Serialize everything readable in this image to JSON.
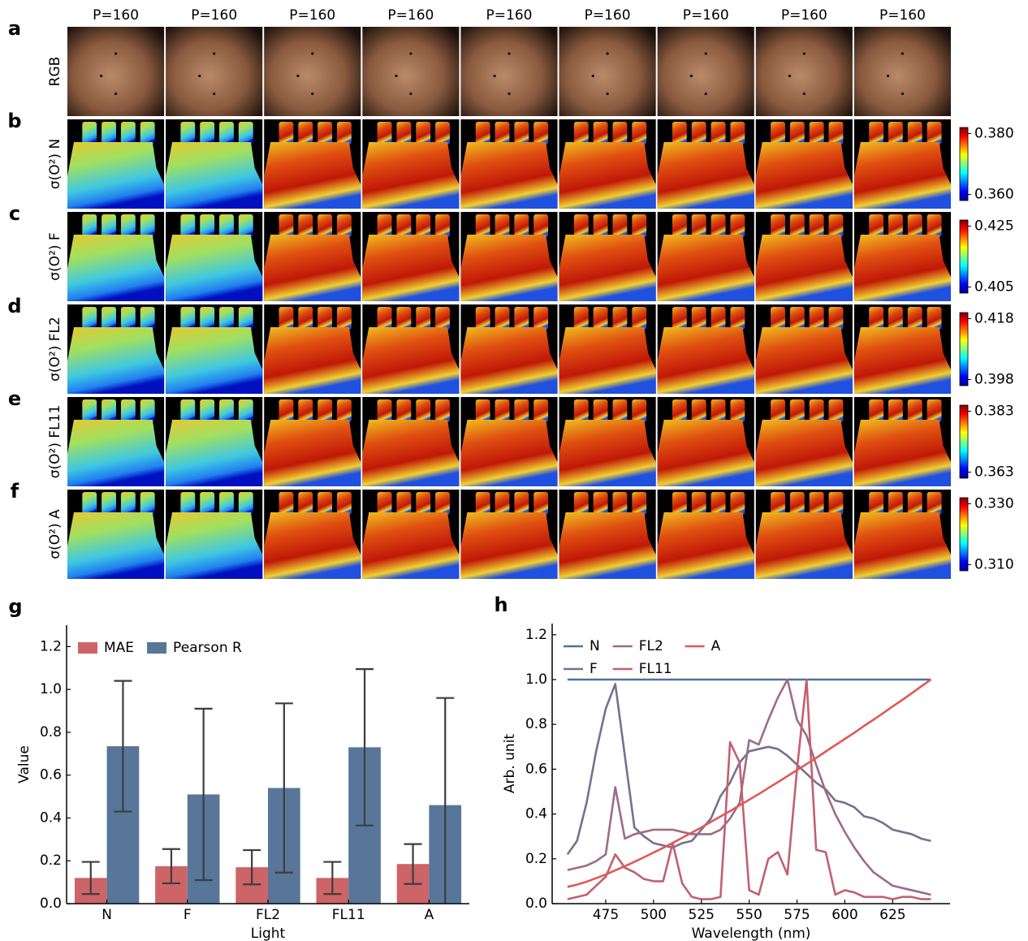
{
  "image_grid": {
    "column_labels": [
      "P=160",
      "P=160",
      "P=160",
      "P=160",
      "P=160",
      "P=160",
      "P=160",
      "P=160",
      "P=160"
    ],
    "rows": [
      {
        "panel": "a",
        "label": "RGB"
      },
      {
        "panel": "b",
        "label": "σ(O²) N",
        "colorbar_lim": [
          0.358,
          0.382
        ],
        "colorbar_ticks": [
          {
            "value": 0.36,
            "label": "0.360"
          },
          {
            "value": 0.38,
            "label": "0.380"
          }
        ]
      },
      {
        "panel": "c",
        "label": "σ(O²) F",
        "colorbar_lim": [
          0.403,
          0.427
        ],
        "colorbar_ticks": [
          0.405,
          0.425
        ]
      },
      {
        "panel": "d",
        "label": "σ(O²) FL2",
        "colorbar_lim": [
          0.396,
          0.42
        ],
        "colorbar_ticks": [
          0.398,
          0.418
        ]
      },
      {
        "panel": "e",
        "label": "σ(O²) FL11",
        "colorbar_lim": [
          0.361,
          0.385
        ],
        "colorbar_ticks": [
          0.363,
          0.383
        ]
      },
      {
        "panel": "f",
        "label": "σ(O²) A",
        "colorbar_lim": [
          0.308,
          0.332
        ],
        "colorbar_ticks": [
          {
            "value": 0.31,
            "label": "0.310"
          },
          {
            "value": 0.33,
            "label": "0.330"
          }
        ]
      }
    ]
  },
  "chart_data": [
    {
      "type": "bar",
      "panel_label": "g",
      "xlabel": "Light",
      "ylabel": "Value",
      "categories": [
        "N",
        "F",
        "FL2",
        "FL11",
        "A"
      ],
      "series": [
        {
          "name": "MAE",
          "color": "#cd6467",
          "values": [
            0.12,
            0.175,
            0.17,
            0.12,
            0.185
          ],
          "errors": [
            0.075,
            0.08,
            0.08,
            0.075,
            0.093
          ]
        },
        {
          "name": "Pearson R",
          "color": "#58769a",
          "values": [
            0.735,
            0.51,
            0.54,
            0.73,
            0.46
          ],
          "errors": [
            0.305,
            0.4,
            0.395,
            0.365,
            0.5
          ]
        }
      ],
      "ylim": [
        0,
        1.3
      ],
      "yticks": [
        {
          "value": 0,
          "label": "0.0"
        },
        0.2,
        0.4,
        0.6,
        0.8,
        {
          "value": 1,
          "label": "1.0"
        },
        1.2
      ],
      "legend": "upper left",
      "legend_columns": 2
    },
    {
      "type": "line",
      "panel_label": "h",
      "xlabel": "Wavelength (nm)",
      "ylabel": "Arb. unit",
      "x": [
        455,
        460,
        465,
        470,
        475,
        480,
        485,
        490,
        495,
        500,
        505,
        510,
        515,
        520,
        525,
        530,
        535,
        540,
        545,
        550,
        555,
        560,
        565,
        570,
        575,
        580,
        585,
        590,
        595,
        600,
        605,
        610,
        615,
        620,
        625,
        630,
        635,
        640,
        645
      ],
      "series": [
        {
          "name": "N",
          "color": "#4c72a0",
          "values": [
            1,
            1,
            1,
            1,
            1,
            1,
            1,
            1,
            1,
            1,
            1,
            1,
            1,
            1,
            1,
            1,
            1,
            1,
            1,
            1,
            1,
            1,
            1,
            1,
            1,
            1,
            1,
            1,
            1,
            1,
            1,
            1,
            1,
            1,
            1,
            1,
            1,
            1,
            1
          ]
        },
        {
          "name": "F",
          "color": "#76708f",
          "values": [
            0.22,
            0.28,
            0.45,
            0.68,
            0.87,
            0.98,
            0.66,
            0.34,
            0.3,
            0.27,
            0.26,
            0.25,
            0.27,
            0.28,
            0.33,
            0.38,
            0.48,
            0.54,
            0.63,
            0.68,
            0.69,
            0.7,
            0.69,
            0.66,
            0.62,
            0.58,
            0.54,
            0.51,
            0.46,
            0.45,
            0.43,
            0.39,
            0.38,
            0.36,
            0.33,
            0.32,
            0.31,
            0.29,
            0.28
          ]
        },
        {
          "name": "FL2",
          "color": "#9e6b86",
          "values": [
            0.15,
            0.16,
            0.17,
            0.19,
            0.22,
            0.52,
            0.29,
            0.31,
            0.32,
            0.33,
            0.33,
            0.33,
            0.32,
            0.31,
            0.31,
            0.31,
            0.33,
            0.38,
            0.45,
            0.73,
            0.71,
            0.82,
            0.92,
            1,
            0.82,
            0.75,
            0.62,
            0.5,
            0.4,
            0.32,
            0.25,
            0.19,
            0.14,
            0.11,
            0.08,
            0.07,
            0.06,
            0.05,
            0.04
          ]
        },
        {
          "name": "FL11",
          "color": "#c2606f",
          "values": [
            0.02,
            0.03,
            0.04,
            0.08,
            0.12,
            0.22,
            0.16,
            0.14,
            0.11,
            0.1,
            0.1,
            0.27,
            0.09,
            0.03,
            0.02,
            0.02,
            0.03,
            0.72,
            0.63,
            0.06,
            0.04,
            0.2,
            0.23,
            0.13,
            0.6,
            1,
            0.24,
            0.23,
            0.04,
            0.06,
            0.05,
            0.03,
            0.03,
            0.03,
            0.02,
            0.03,
            0.03,
            0.02,
            0.02
          ]
        },
        {
          "name": "A",
          "color": "#e05858",
          "values": [
            0.075,
            0.085,
            0.098,
            0.114,
            0.13,
            0.149,
            0.167,
            0.187,
            0.207,
            0.228,
            0.249,
            0.271,
            0.294,
            0.317,
            0.34,
            0.365,
            0.389,
            0.413,
            0.439,
            0.464,
            0.489,
            0.516,
            0.542,
            0.569,
            0.596,
            0.623,
            0.65,
            0.679,
            0.707,
            0.735,
            0.763,
            0.793,
            0.821,
            0.85,
            0.88,
            0.909,
            0.939,
            0.97,
            1
          ]
        }
      ],
      "xlim": [
        447,
        655
      ],
      "ylim": [
        0,
        1.25
      ],
      "xticks": [
        475,
        500,
        525,
        550,
        575,
        600,
        625
      ],
      "yticks": [
        {
          "value": 0,
          "label": "0.0"
        },
        0.2,
        0.4,
        0.6,
        0.8,
        {
          "value": 1,
          "label": "1.0"
        },
        1.2
      ],
      "legend": "upper left",
      "legend_columns": 3
    }
  ]
}
